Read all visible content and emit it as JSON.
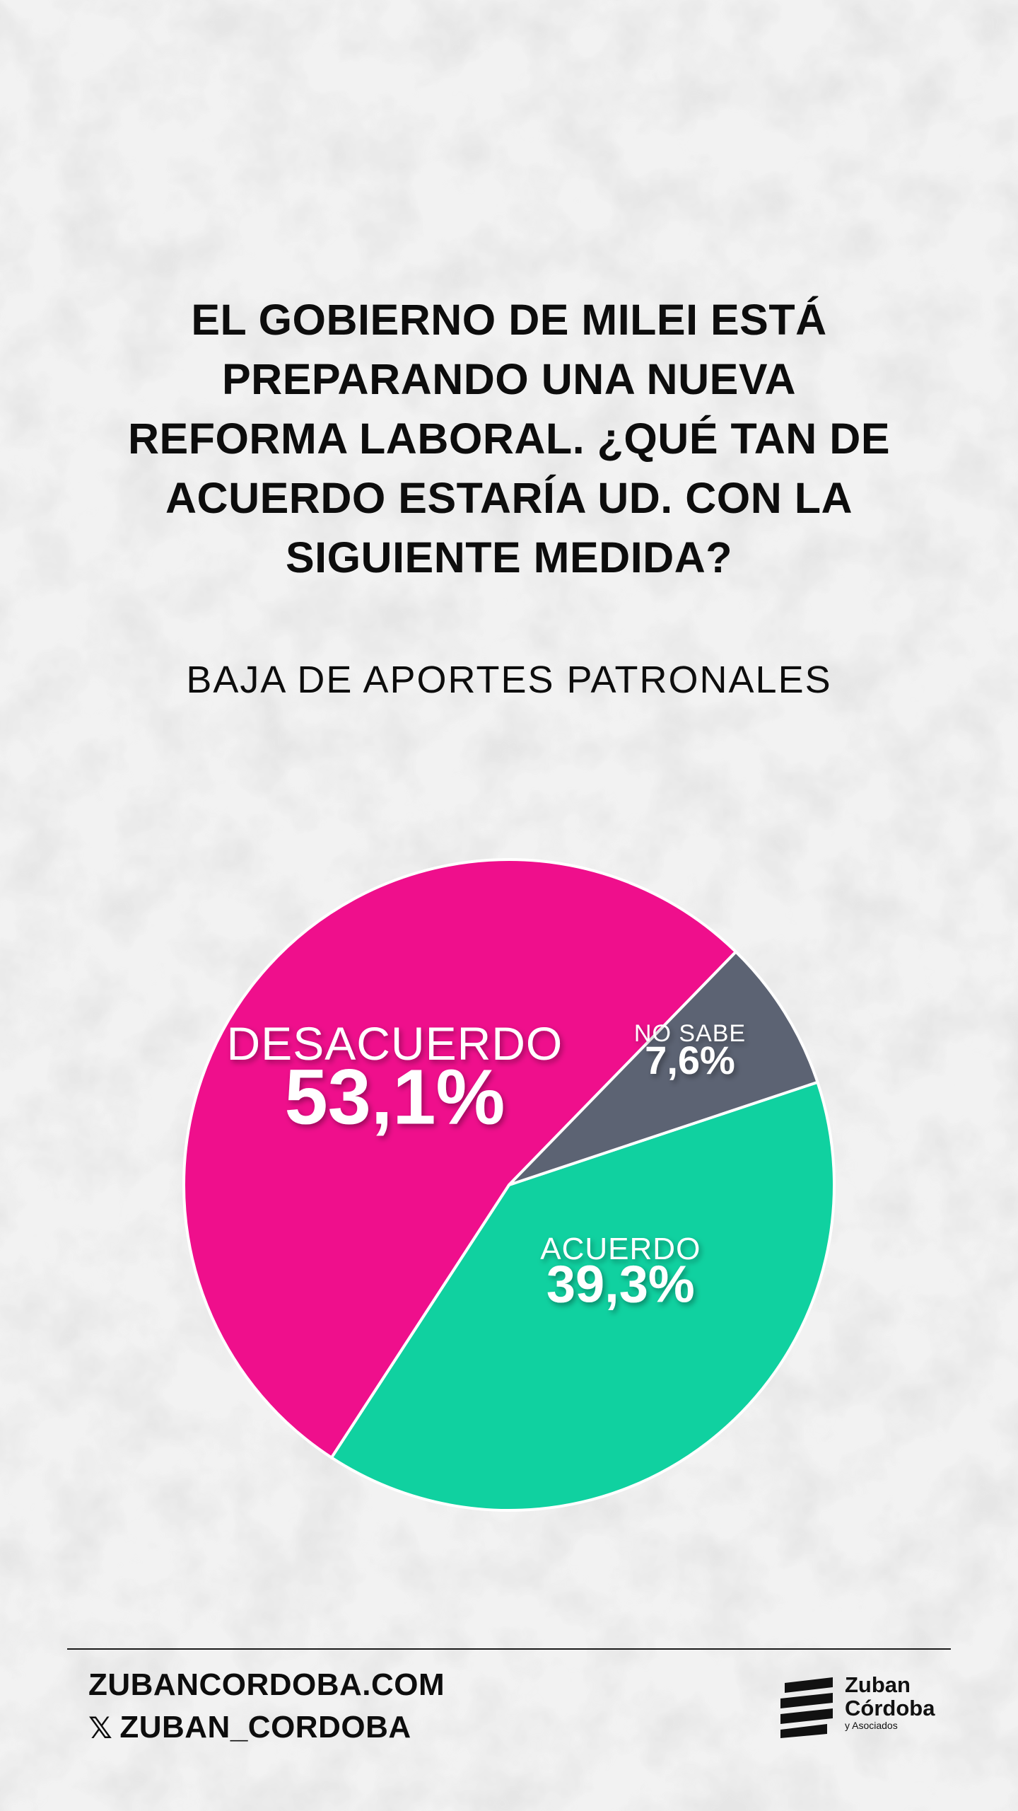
{
  "question": {
    "lines": [
      "EL GOBIERNO DE MILEI ESTÁ",
      "PREPARANDO UNA NUEVA",
      "REFORMA LABORAL. ¿QUÉ TAN DE",
      "ACUERDO ESTARÍA UD. CON LA",
      "SIGUIENTE MEDIDA?"
    ]
  },
  "subtitle": "BAJA DE APORTES PATRONALES",
  "chart_data": {
    "type": "pie",
    "title": "",
    "series": [
      {
        "label": "ACUERDO",
        "value": 39.3,
        "value_label": "39,3%",
        "color": "#10d1a0"
      },
      {
        "label": "DESACUERDO",
        "value": 53.1,
        "value_label": "53,1%",
        "color": "#ef0f8c"
      },
      {
        "label": "NO SABE",
        "value": 7.6,
        "value_label": "7,6%",
        "color": "#5c6373"
      }
    ],
    "slice_border_color": "#ffffff",
    "label_color": "#ffffff"
  },
  "footer": {
    "website": "ZUBANCORDOBA.COM",
    "x_icon": "x-logo-icon",
    "x_glyph": "𝕏",
    "handle": "ZUBAN_CORDOBA"
  },
  "logo": {
    "line1": "Zuban",
    "line2": "Córdoba",
    "line3": "y Asociados",
    "icon": "zuban-stripes-icon"
  },
  "colors": {
    "background": "#ececec",
    "text": "#0d0d0d"
  }
}
